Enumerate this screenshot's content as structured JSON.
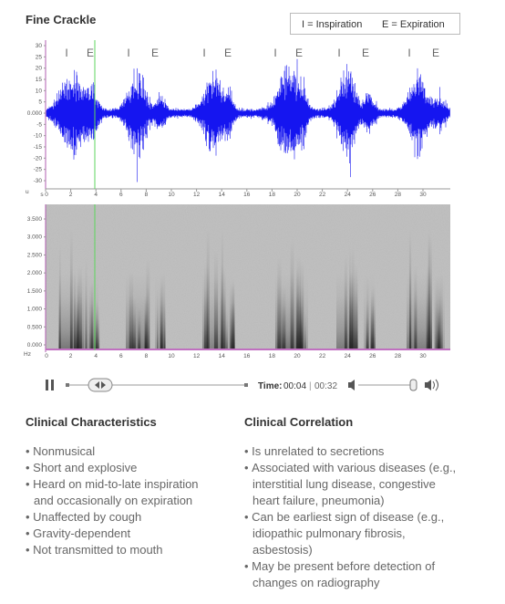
{
  "header": {
    "title": "Fine Crackle",
    "legend": [
      "I = Inspiration",
      "E = Expiration"
    ]
  },
  "waveform": {
    "markers": [
      "I",
      "E",
      "I",
      "E",
      "I",
      "E",
      "I",
      "E",
      "I",
      "E",
      "I",
      "E"
    ],
    "yticks": [
      "30",
      "25",
      "20",
      "15",
      "10",
      "5",
      "0.000",
      "-5",
      "-10",
      "-15",
      "-20",
      "-25",
      "-30"
    ],
    "y_unit": "u",
    "x_unit": "s",
    "xticks": [
      "0",
      "2",
      "4",
      "6",
      "8",
      "10",
      "12",
      "14",
      "16",
      "18",
      "20",
      "22",
      "24",
      "26",
      "28",
      "30"
    ]
  },
  "spectrogram": {
    "yticks": [
      "3.500",
      "3.000",
      "2.500",
      "2.000",
      "1.500",
      "1.000",
      "0.500",
      "0.000"
    ],
    "y_unit": "Hz",
    "xticks": [
      "0",
      "2",
      "4",
      "6",
      "8",
      "10",
      "12",
      "14",
      "16",
      "18",
      "20",
      "22",
      "24",
      "26",
      "28",
      "30"
    ]
  },
  "player": {
    "time_label": "Time:",
    "current": "00:04",
    "separator": "|",
    "total": "00:32"
  },
  "sections": [
    {
      "heading": "Clinical Characteristics",
      "items": [
        "Nonmusical",
        "Short and explosive",
        "Heard on mid-to-late inspiration and occasionally on expiration",
        "Unaffected by cough",
        "Gravity-dependent",
        "Not transmitted to mouth"
      ]
    },
    {
      "heading": "Clinical Correlation",
      "items": [
        "Is unrelated to secretions",
        "Associated with various diseases (e.g., interstitial lung disease, congestive heart failure, pneumonia)",
        "Can be earliest sign of disease (e.g., idiopathic pulmonary fibrosis, asbestosis)",
        "May be present before detection of changes on radiography"
      ]
    }
  ]
}
